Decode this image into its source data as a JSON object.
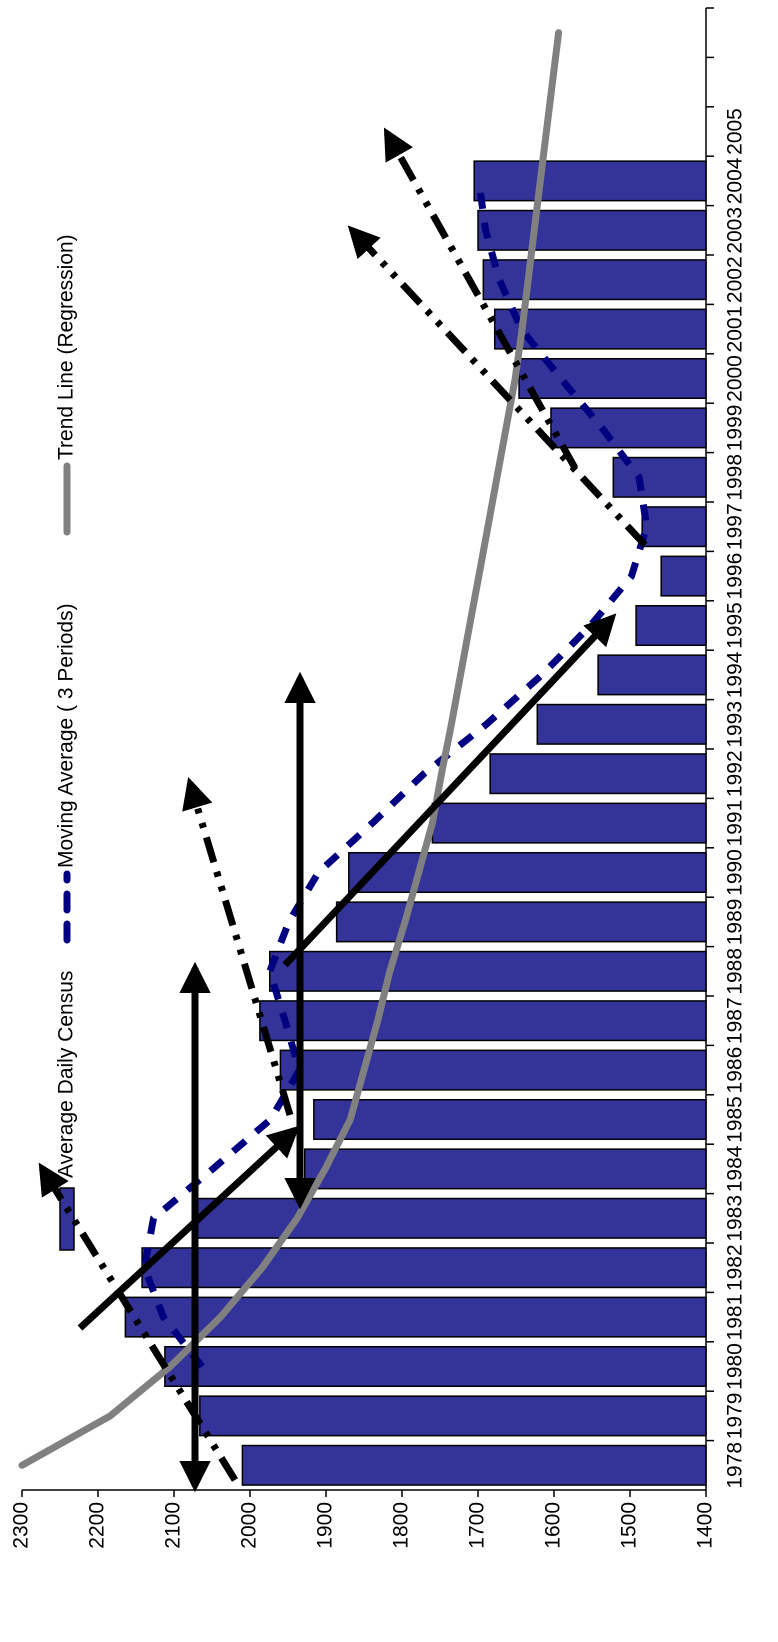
{
  "chart_data": {
    "type": "bar",
    "categories": [
      "1978",
      "1979",
      "1980",
      "1981",
      "1982",
      "1983",
      "1984",
      "1985",
      "1986",
      "1987",
      "1988",
      "1989",
      "1990",
      "1991",
      "1992",
      "1993",
      "1994",
      "1995",
      "1996",
      "1997",
      "1998",
      "1999",
      "2000",
      "2001",
      "2002",
      "2003",
      "2004",
      "2005",
      null,
      null
    ],
    "series": [
      {
        "name": "Average Daily Census",
        "type": "bar",
        "color": "#333399",
        "values": [
          2010,
          2066,
          2112,
          2164,
          2142,
          2076,
          1928,
          1916,
          1960,
          1987,
          1974,
          1886,
          1870,
          1760,
          1684,
          1622,
          1542,
          1492,
          1459,
          1484,
          1522,
          1604,
          1646,
          1678,
          1693,
          1700,
          1705,
          null,
          null,
          null
        ]
      },
      {
        "name": "Moving Average ( 3 Periods)",
        "type": "line",
        "style": "dashed",
        "color": "#000080",
        "values": [
          null,
          null,
          2063,
          2114,
          2139,
          2127,
          2049,
          1973,
          1935,
          1954,
          1974,
          1949,
          1910,
          1839,
          1771,
          1689,
          1616,
          1552,
          1498,
          1478,
          1488,
          1537,
          1591,
          1643,
          1672,
          1690,
          1699,
          null,
          null,
          null
        ]
      },
      {
        "name": "Trend Line (Regression)",
        "type": "line",
        "style": "solid",
        "color": "#808080",
        "values": [
          2300,
          2184,
          2105,
          2039,
          1984,
          1938,
          1901,
          1868,
          1850,
          1832,
          1816,
          1796,
          1778,
          1760,
          1748,
          1735,
          1723,
          1711,
          1699,
          1687,
          1675,
          1663,
          1651,
          1642,
          1634,
          1626,
          1618,
          1610,
          1602,
          1594
        ]
      }
    ],
    "ylim": [
      1400,
      2300
    ],
    "yticks": [
      1400,
      1500,
      1600,
      1700,
      1800,
      1900,
      2000,
      2100,
      2200,
      2300
    ],
    "orientation": "rotated",
    "legend": "top"
  }
}
